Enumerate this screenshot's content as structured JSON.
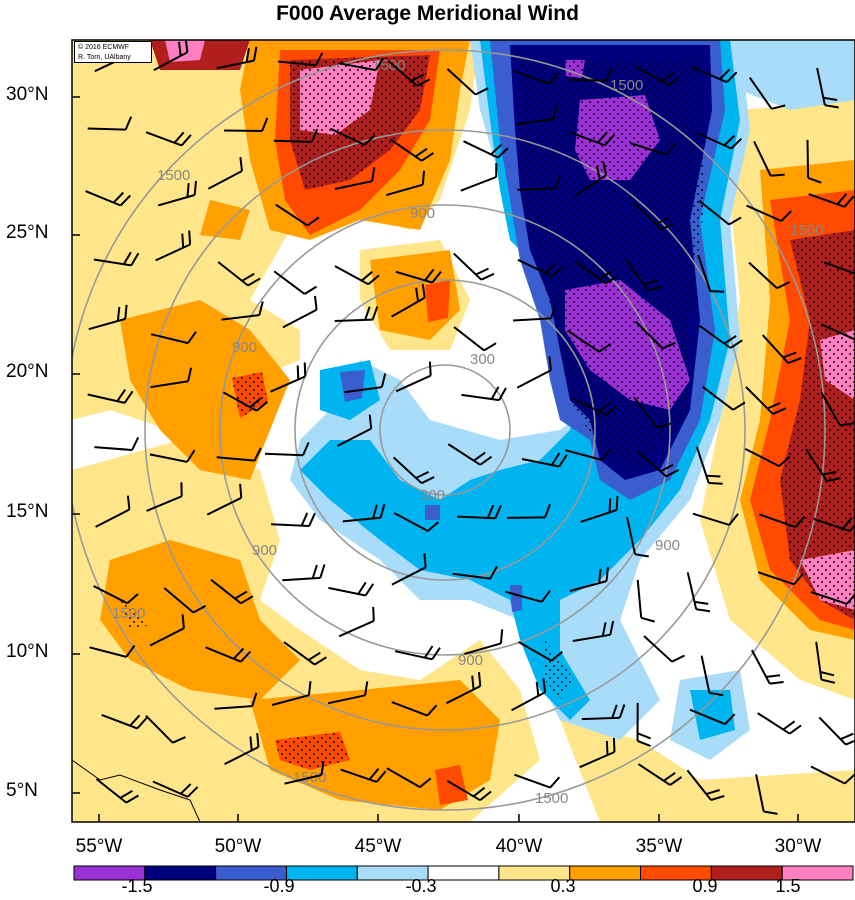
{
  "title": "F000 Average Meridional Wind",
  "credit": {
    "line1": "© 2016 ECMWF",
    "line2": "R. Torn, UAlbany"
  },
  "lat_labels": [
    "30°N",
    "25°N",
    "20°N",
    "15°N",
    "10°N",
    "5°N"
  ],
  "lon_labels": [
    "55°W",
    "50°W",
    "45°W",
    "40°W",
    "35°W",
    "30°W"
  ],
  "contour_labels": [
    "300",
    "300",
    "900",
    "900",
    "900",
    "900",
    "900",
    "1500",
    "1500",
    "1500",
    "1500",
    "1500",
    "1500",
    "1500"
  ],
  "colorbar": {
    "labels": [
      "-1.5",
      "-0.9",
      "-0.3",
      "0.3",
      "0.9",
      "1.5"
    ],
    "colors": [
      "#9b30d6",
      "#00007e",
      "#3a5ed0",
      "#00b4f0",
      "#a8dcf8",
      "#ffffff",
      "#ffe68a",
      "#ff9f00",
      "#ff4a00",
      "#b01e1e",
      "#ff80c0"
    ]
  },
  "colors": {
    "strong_neg": "#9b30d6",
    "navy": "#00007e",
    "blue": "#3a5ed0",
    "cyan": "#00b4f0",
    "light_cyan": "#a8dcf8",
    "yellow": "#ffe68a",
    "orange": "#ff9f00",
    "red_orange": "#ff4a00",
    "dark_red": "#b01e1e",
    "pink": "#ff80c0"
  }
}
